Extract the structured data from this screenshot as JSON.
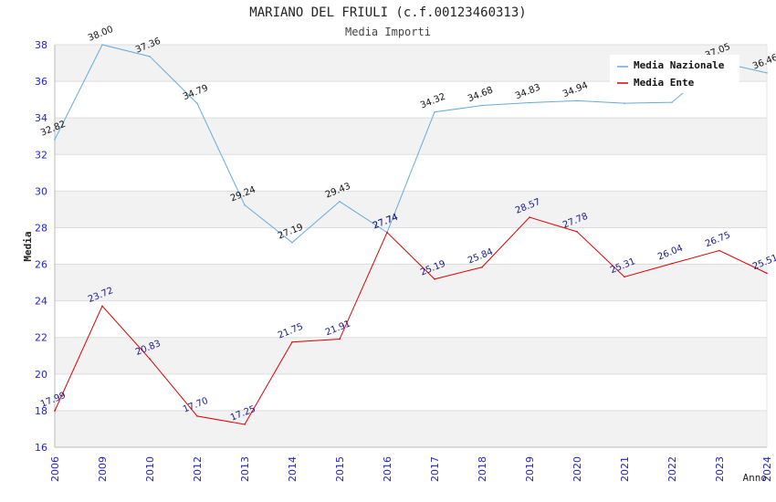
{
  "chart_data": {
    "type": "line",
    "title": "MARIANO DEL FRIULI (c.f.00123460313)",
    "subtitle": "Media Importi",
    "ylabel": "Media",
    "xlabel": "Anno",
    "ylim": [
      16,
      38
    ],
    "yticks": [
      "16",
      "18",
      "20",
      "22",
      "24",
      "26",
      "28",
      "30",
      "32",
      "34",
      "36",
      "38"
    ],
    "categories": [
      "2006",
      "2009",
      "2010",
      "2012",
      "2013",
      "2014",
      "2015",
      "2016",
      "2017",
      "2018",
      "2019",
      "2020",
      "2021",
      "2022",
      "2023",
      "2024"
    ],
    "grid": "horizontal, alternating bands",
    "legend_position": "top-right",
    "series": [
      {
        "name": "Media Nazionale",
        "color": "#66aadd",
        "label_color": "#111111",
        "values": [
          32.82,
          38.0,
          37.36,
          34.79,
          29.24,
          27.19,
          29.43,
          27.74,
          34.32,
          34.68,
          34.83,
          34.94,
          34.8,
          34.85,
          37.05,
          36.46
        ],
        "labels": [
          "32.82",
          "38.00",
          "37.36",
          "34.79",
          "29.24",
          "27.19",
          "29.43",
          "27.74",
          "34.32",
          "34.68",
          "34.83",
          "34.94",
          "",
          "",
          "37.05",
          "36.46"
        ]
      },
      {
        "name": "Media Ente",
        "color": "#dd0000",
        "label_color": "#1a1a88",
        "values": [
          17.99,
          23.72,
          20.83,
          17.7,
          17.25,
          21.75,
          21.91,
          27.74,
          25.19,
          25.84,
          28.57,
          27.78,
          25.31,
          26.04,
          26.75,
          25.51
        ],
        "labels": [
          "17.99",
          "23.72",
          "20.83",
          "17.70",
          "17.25",
          "21.75",
          "21.91",
          "27.74",
          "25.19",
          "25.84",
          "28.57",
          "27.78",
          "25.31",
          "26.04",
          "26.75",
          "25.51"
        ]
      }
    ]
  }
}
